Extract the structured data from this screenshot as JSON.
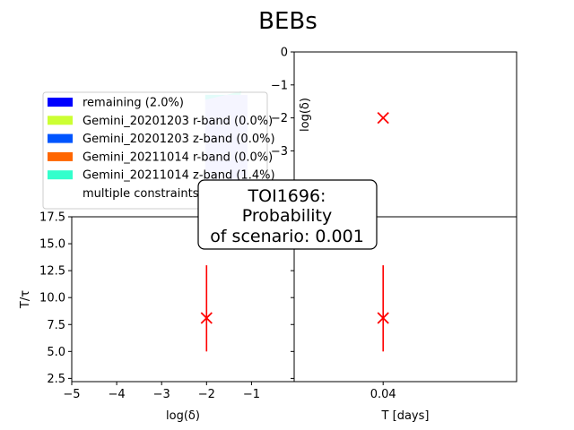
{
  "figure": {
    "title": "BEBs",
    "annotation_lines": [
      "TOI1696:",
      "Probability",
      "of scenario: 0.001"
    ]
  },
  "legend": {
    "placement": "upper-left",
    "entries": [
      {
        "label": "remaining (2.0%)",
        "color": "#0000ff"
      },
      {
        "label": "Gemini_20201203 r-band (0.0%)",
        "color": "#ccff33"
      },
      {
        "label": "Gemini_20201203 z-band (0.0%)",
        "color": "#0055ff"
      },
      {
        "label": "Gemini_20211014 r-band (0.0%)",
        "color": "#ff6600"
      },
      {
        "label": "Gemini_20211014 z-band (1.4%)",
        "color": "#33ffcc"
      },
      {
        "label": "multiple constraints (0.0%)",
        "color": "#ffffff"
      }
    ]
  },
  "chart_data": [
    {
      "type": "area",
      "panel": "top-left",
      "xlim": [
        -5,
        0
      ],
      "ylim": [
        -5,
        0
      ],
      "series": [
        {
          "color": "#0000ff",
          "x": [
            -2.0,
            -1.05
          ],
          "y_low": [
            -5.0,
            -5.0
          ],
          "y_high": [
            -1.3,
            -1.3
          ]
        },
        {
          "color": "#33ffcc",
          "x": [
            -2.0,
            -1.2
          ],
          "y_low": [
            -1.3,
            -1.3
          ],
          "y_high": [
            -1.45,
            -1.2
          ]
        }
      ]
    },
    {
      "type": "scatter",
      "panel": "top-right",
      "ylabel": "log(δ)",
      "ylim": [
        -5,
        0
      ],
      "yticks": [
        "0",
        "−1",
        "−2",
        "−3"
      ],
      "yticks_values": [
        0,
        -1,
        -2,
        -3
      ],
      "xlim": [
        0.0,
        0.1
      ],
      "points": [
        {
          "x": 0.04,
          "y": -2.0,
          "color": "#ff0000",
          "marker": "x"
        }
      ]
    },
    {
      "type": "scatter",
      "panel": "bottom-left",
      "xlabel": "log(δ)",
      "ylabel": "T/τ",
      "xlim": [
        -5,
        -0.05
      ],
      "ylim": [
        2.2,
        17.5
      ],
      "xticks": [
        "−5",
        "−4",
        "−3",
        "−2",
        "−1"
      ],
      "xticks_values": [
        -5,
        -4,
        -3,
        -2,
        -1
      ],
      "yticks": [
        "2.5",
        "5.0",
        "7.5",
        "10.0",
        "12.5",
        "15.0",
        "17.5"
      ],
      "yticks_values": [
        2.5,
        5.0,
        7.5,
        10.0,
        12.5,
        15.0,
        17.5
      ],
      "points": [
        {
          "x": -2.0,
          "y": 8.1,
          "y_low": 5.0,
          "y_high": 13.0,
          "color": "#ff0000",
          "marker": "x"
        }
      ]
    },
    {
      "type": "scatter",
      "panel": "bottom-right",
      "xlabel": "T [days]",
      "xlim": [
        0.0,
        0.1
      ],
      "ylim": [
        2.2,
        17.5
      ],
      "xticks": [
        "0.04"
      ],
      "xticks_values": [
        0.04
      ],
      "points": [
        {
          "x": 0.04,
          "y": 8.1,
          "y_low": 5.0,
          "y_high": 13.0,
          "color": "#ff0000",
          "marker": "x"
        }
      ]
    }
  ]
}
